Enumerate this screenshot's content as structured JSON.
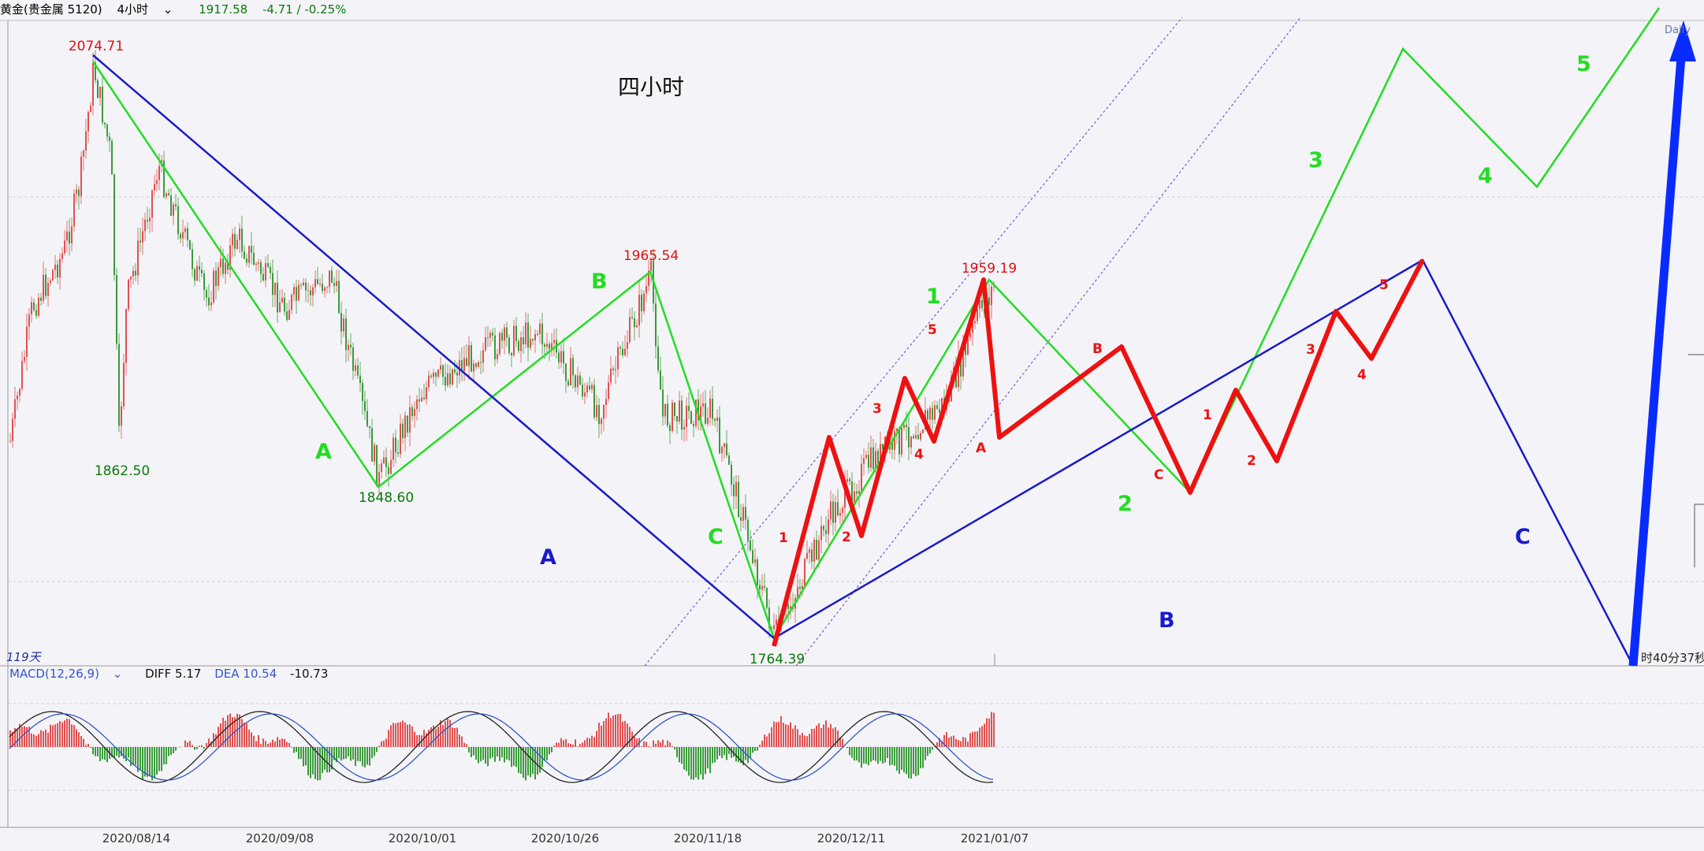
{
  "header": {
    "symbol": "黄金(贵金属 5120)",
    "timeframe": "4小时",
    "price": "1917.58",
    "change": "-4.71 / -0.25%"
  },
  "chart_title": "四小时",
  "corner_label": "Daily",
  "days_label": "119天",
  "countdown_label": "时40分37秒",
  "price_labels": {
    "high_aug": "2074.71",
    "low_aug": "1862.50",
    "low_sep": "1848.60",
    "high_nov": "1965.54",
    "low_nov": "1764.39",
    "high_jan": "1959.19"
  },
  "macd": {
    "name": "MACD(12,26,9)",
    "diff": "DIFF 5.17",
    "dea": "DEA 10.54",
    "macd_value": "-10.73"
  },
  "colors": {
    "green": "#22dd22",
    "blue": "#1a1acc",
    "red": "#ee1111",
    "bright_blue": "#0a2bff",
    "dark_green": "#0a7a0a"
  },
  "chart_data": {
    "type": "line",
    "x_ticks": [
      "2020/08/14",
      "2020/09/08",
      "2020/10/01",
      "2020/10/26",
      "2020/11/18",
      "2020/12/11",
      "2021/01/07"
    ],
    "series": [
      {
        "label": "A",
        "color": "green"
      },
      {
        "label": "B",
        "color": "green"
      },
      {
        "label": "C",
        "color": "green"
      },
      {
        "label": "1",
        "color": "green"
      },
      {
        "label": "2",
        "color": "green"
      },
      {
        "label": "3",
        "color": "green"
      },
      {
        "label": "4",
        "color": "green"
      },
      {
        "label": "5",
        "color": "green"
      },
      {
        "label": "A",
        "color": "blue"
      },
      {
        "label": "B",
        "color": "blue"
      },
      {
        "label": "C",
        "color": "blue"
      },
      {
        "label": "1",
        "color": "red"
      },
      {
        "label": "2",
        "color": "red"
      },
      {
        "label": "3",
        "color": "red"
      },
      {
        "label": "4",
        "color": "red"
      },
      {
        "label": "5",
        "color": "red"
      },
      {
        "label": "A",
        "color": "red"
      },
      {
        "label": "B",
        "color": "red"
      },
      {
        "label": "C",
        "color": "red"
      },
      {
        "label": "1",
        "color": "red"
      },
      {
        "label": "2",
        "color": "red"
      },
      {
        "label": "3",
        "color": "red"
      },
      {
        "label": "4",
        "color": "red"
      },
      {
        "label": "5",
        "color": "red"
      }
    ]
  }
}
